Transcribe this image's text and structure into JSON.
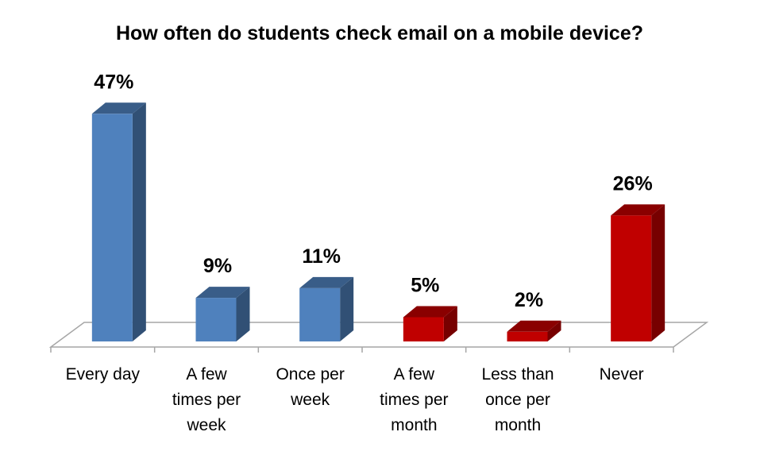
{
  "chart_data": {
    "type": "bar",
    "title": "How often do students check email on a mobile device?",
    "xlabel": "",
    "ylabel": "",
    "categories": [
      "Every day",
      "A few times per week",
      "Once per week",
      "A few times per month",
      "Less than once per month",
      "Never"
    ],
    "category_lines": [
      [
        "Every day"
      ],
      [
        "A few",
        "times per",
        "week"
      ],
      [
        "Once per",
        "week"
      ],
      [
        "A few",
        "times per",
        "month"
      ],
      [
        "Less than",
        "once per",
        "month"
      ],
      [
        "Never"
      ]
    ],
    "values": [
      47,
      9,
      11,
      5,
      2,
      26
    ],
    "data_labels": [
      "47%",
      "9%",
      "11%",
      "5%",
      "2%",
      "26%"
    ],
    "ylim": [
      0,
      50
    ],
    "grid": false,
    "legend": "none",
    "bar_colors": [
      "#4f81bd",
      "#4f81bd",
      "#4f81bd",
      "#c00000",
      "#c00000",
      "#c00000"
    ]
  }
}
